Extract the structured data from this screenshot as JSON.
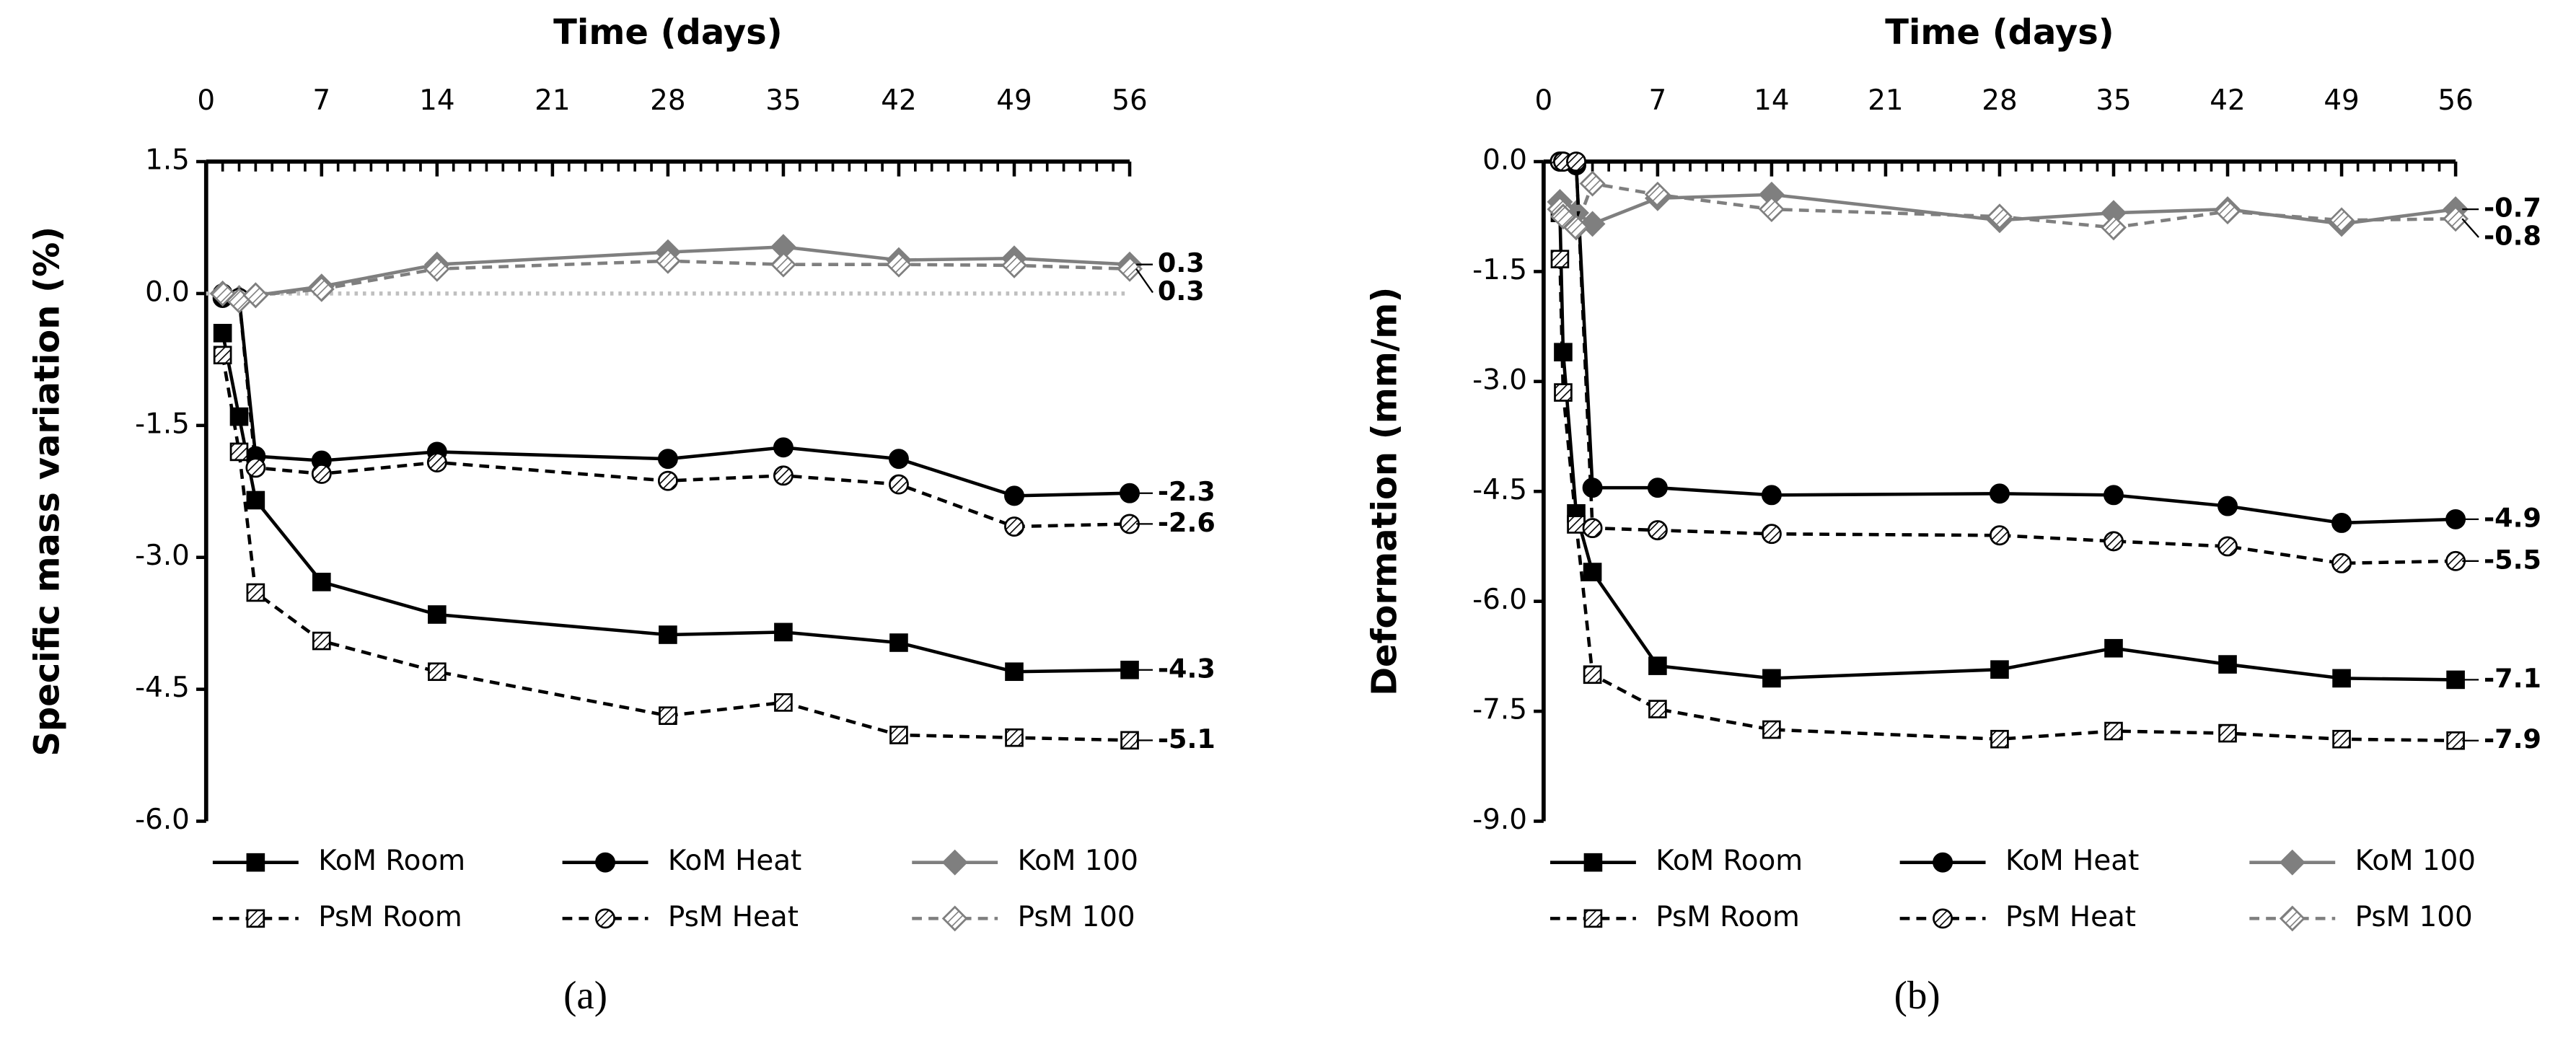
{
  "chart_data": [
    {
      "type": "line",
      "x_label": "Time (days)",
      "y_label": "Specific mass variation (%)",
      "caption": "(a)",
      "xlim": [
        0,
        56
      ],
      "xticks": [
        0,
        7,
        14,
        21,
        28,
        35,
        42,
        49,
        56
      ],
      "ylim": [
        -6,
        1.5
      ],
      "yticks": [
        {
          "value": -6,
          "label": "-6.0"
        },
        -4.5,
        {
          "value": -3,
          "label": "-3.0"
        },
        -1.5,
        {
          "value": 0,
          "label": "0.0"
        },
        1.5
      ],
      "reference_line": {
        "value": 0,
        "color": "#bfbfbf"
      },
      "x": [
        1,
        2,
        3,
        7,
        14,
        28,
        35,
        42,
        49,
        56
      ],
      "series": [
        {
          "name": "KoM Room",
          "color": "#000000",
          "line_style": "solid",
          "marker": "square",
          "marker_fill": "solid",
          "values": [
            -0.45,
            -1.4,
            -2.35,
            -3.28,
            -3.65,
            -3.88,
            -3.85,
            -3.97,
            -4.3,
            -4.28
          ],
          "value_labels": [
            null,
            null,
            null,
            null,
            null,
            null,
            null,
            null,
            null,
            "-4.3"
          ]
        },
        {
          "name": "KoM Heat",
          "color": "#000000",
          "line_style": "solid",
          "marker": "circle",
          "marker_fill": "solid",
          "values": [
            -0.05,
            -0.05,
            -1.85,
            -1.9,
            -1.8,
            -1.88,
            -1.75,
            -1.88,
            -2.3,
            -2.27
          ],
          "value_labels": [
            null,
            null,
            null,
            null,
            null,
            null,
            null,
            null,
            null,
            "-2.3"
          ]
        },
        {
          "name": "KoM 100",
          "color": "#7f7f7f",
          "line_style": "solid",
          "marker": "diamond",
          "marker_fill": "solid",
          "values": [
            0,
            -0.05,
            -0.02,
            0.08,
            0.33,
            0.47,
            0.53,
            0.38,
            0.4,
            0.33
          ],
          "value_labels": [
            null,
            null,
            null,
            null,
            null,
            null,
            null,
            null,
            null,
            "0.3"
          ]
        },
        {
          "name": "PsM Room",
          "color": "#000000",
          "line_style": "dashed",
          "marker": "square",
          "marker_fill": "hatch",
          "values": [
            -0.7,
            -1.8,
            -3.4,
            -3.95,
            -4.3,
            -4.8,
            -4.65,
            -5.02,
            -5.05,
            -5.08
          ],
          "value_labels": [
            null,
            null,
            null,
            null,
            null,
            null,
            null,
            null,
            null,
            "-5.1"
          ]
        },
        {
          "name": "PsM Heat",
          "color": "#000000",
          "line_style": "dashed",
          "marker": "circle",
          "marker_fill": "hatch",
          "values": [
            0,
            -0.05,
            -1.98,
            -2.05,
            -1.92,
            -2.13,
            -2.07,
            -2.17,
            -2.65,
            -2.62
          ],
          "value_labels": [
            null,
            null,
            null,
            null,
            null,
            null,
            null,
            null,
            null,
            "-2.6"
          ]
        },
        {
          "name": "PsM 100",
          "color": "#7f7f7f",
          "line_style": "dashed",
          "marker": "diamond",
          "marker_fill": "hatch",
          "values": [
            0,
            -0.08,
            -0.02,
            0.05,
            0.28,
            0.37,
            0.33,
            0.33,
            0.32,
            0.28
          ],
          "value_labels": [
            null,
            null,
            null,
            null,
            null,
            null,
            null,
            null,
            null,
            "0.3"
          ]
        }
      ]
    },
    {
      "type": "line",
      "x_label": "Time (days)",
      "y_label": "Deformation (mm/m)",
      "caption": "(b)",
      "xlim": [
        0,
        56
      ],
      "xticks": [
        0,
        7,
        14,
        21,
        28,
        35,
        42,
        49,
        56
      ],
      "ylim": [
        -9,
        0
      ],
      "yticks": [
        {
          "value": -9,
          "label": "-9.0"
        },
        -7.5,
        {
          "value": -6,
          "label": "-6.0"
        },
        -4.5,
        {
          "value": -3,
          "label": "-3.0"
        },
        -1.5,
        {
          "value": 0,
          "label": "0.0"
        }
      ],
      "x": [
        1,
        1.2,
        2,
        3,
        7,
        14,
        28,
        35,
        42,
        49,
        56
      ],
      "series": [
        {
          "name": "KoM Room",
          "color": "#000000",
          "line_style": "solid",
          "marker": "square",
          "marker_fill": "solid",
          "values": [
            -0.7,
            -2.6,
            -4.8,
            -5.6,
            -6.88,
            -7.05,
            -6.93,
            -6.64,
            -6.86,
            -7.05,
            -7.07
          ],
          "value_labels": [
            null,
            null,
            null,
            null,
            null,
            null,
            null,
            null,
            null,
            null,
            "-7.1"
          ]
        },
        {
          "name": "KoM Heat",
          "color": "#000000",
          "line_style": "solid",
          "marker": "circle",
          "marker_fill": "solid",
          "values": [
            0,
            0,
            -0.05,
            -4.45,
            -4.45,
            -4.55,
            -4.53,
            -4.55,
            -4.7,
            -4.93,
            -4.88
          ],
          "value_labels": [
            null,
            null,
            null,
            null,
            null,
            null,
            null,
            null,
            null,
            null,
            "-4.9"
          ]
        },
        {
          "name": "KoM 100",
          "color": "#7f7f7f",
          "line_style": "solid",
          "marker": "diamond",
          "marker_fill": "solid",
          "values": [
            -0.55,
            -0.65,
            -0.7,
            -0.85,
            -0.5,
            -0.45,
            -0.8,
            -0.7,
            -0.65,
            -0.85,
            -0.65
          ],
          "value_labels": [
            null,
            null,
            null,
            null,
            null,
            null,
            null,
            null,
            null,
            null,
            "-0.7"
          ]
        },
        {
          "name": "PsM Room",
          "color": "#000000",
          "line_style": "dashed",
          "marker": "square",
          "marker_fill": "hatch",
          "values": [
            -1.33,
            -3.15,
            -4.95,
            -7.0,
            -7.47,
            -7.75,
            -7.88,
            -7.77,
            -7.8,
            -7.88,
            -7.9
          ],
          "value_labels": [
            null,
            null,
            null,
            null,
            null,
            null,
            null,
            null,
            null,
            null,
            "-7.9"
          ]
        },
        {
          "name": "PsM Heat",
          "color": "#000000",
          "line_style": "dashed",
          "marker": "circle",
          "marker_fill": "hatch",
          "values": [
            0,
            0,
            0,
            -5.0,
            -5.03,
            -5.08,
            -5.1,
            -5.18,
            -5.25,
            -5.48,
            -5.45
          ],
          "value_labels": [
            null,
            null,
            null,
            null,
            null,
            null,
            null,
            null,
            null,
            null,
            "-5.5"
          ]
        },
        {
          "name": "PsM 100",
          "color": "#7f7f7f",
          "line_style": "dashed",
          "marker": "diamond",
          "marker_fill": "hatch",
          "values": [
            -0.65,
            -0.75,
            -0.9,
            -0.3,
            -0.45,
            -0.65,
            -0.75,
            -0.9,
            -0.68,
            -0.8,
            -0.78
          ],
          "value_labels": [
            null,
            null,
            null,
            null,
            null,
            null,
            null,
            null,
            null,
            null,
            "-0.8"
          ]
        }
      ]
    }
  ]
}
